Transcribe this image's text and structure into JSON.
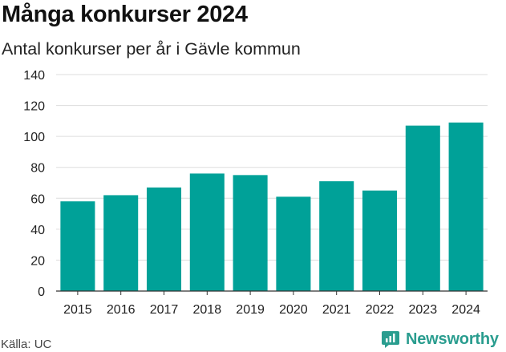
{
  "header": {
    "title": "Många konkurser 2024",
    "subtitle": "Antal konkurser per år i Gävle kommun"
  },
  "footer": {
    "source": "Källa: UC",
    "brand": "Newsworthy"
  },
  "colors": {
    "bar": "#00a198",
    "grid": "#dddddd",
    "axis": "#333333",
    "brand": "#2a9d8f"
  },
  "icons": {
    "brand_logo": "newsworthy-logo-icon"
  },
  "chart_data": {
    "type": "bar",
    "title": "Många konkurser 2024",
    "subtitle": "Antal konkurser per år i Gävle kommun",
    "xlabel": "",
    "ylabel": "",
    "categories": [
      "2015",
      "2016",
      "2017",
      "2018",
      "2019",
      "2020",
      "2021",
      "2022",
      "2023",
      "2024"
    ],
    "values": [
      58,
      62,
      67,
      76,
      75,
      61,
      71,
      65,
      107,
      109
    ],
    "ylim": [
      0,
      140
    ],
    "yticks": [
      0,
      20,
      40,
      60,
      80,
      100,
      120,
      140
    ],
    "grid": true,
    "legend": "none"
  }
}
